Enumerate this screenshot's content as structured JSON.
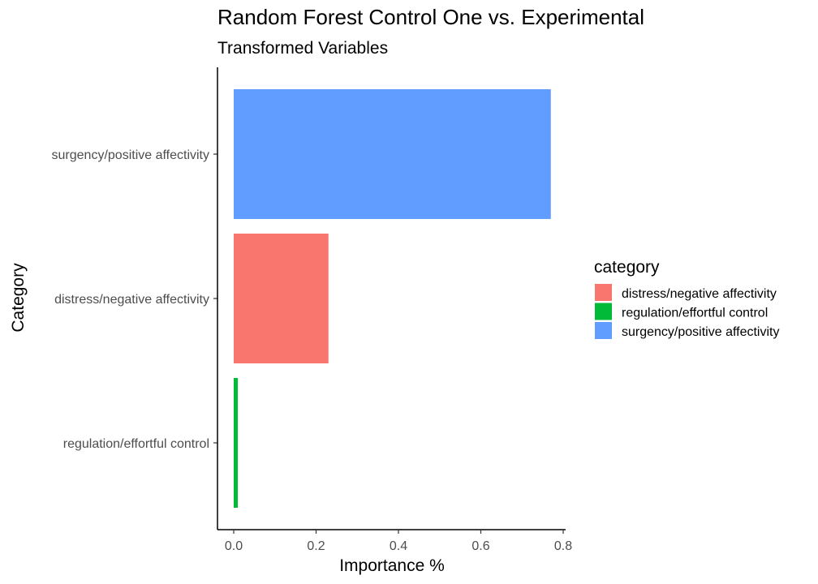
{
  "chart_data": {
    "type": "bar",
    "orientation": "horizontal",
    "title": "Random Forest Control One vs. Experimental",
    "subtitle": "Transformed Variables",
    "xlabel": "Importance %",
    "ylabel": "Category",
    "xlim": [
      0,
      0.8
    ],
    "x_ticks": [
      0.0,
      0.2,
      0.4,
      0.6,
      0.8
    ],
    "x_tick_labels": [
      "0.0",
      "0.2",
      "0.4",
      "0.6",
      "0.8"
    ],
    "categories": [
      "surgency/positive affectivity",
      "distress/negative affectivity",
      "regulation/effortful control"
    ],
    "values": [
      0.77,
      0.23,
      0.01
    ],
    "colors": [
      "#619CFF",
      "#F8766D",
      "#00BA38"
    ],
    "grid": false,
    "legend": {
      "title": "category",
      "position": "right",
      "items": [
        {
          "label": "distress/negative affectivity",
          "color": "#F8766D"
        },
        {
          "label": "regulation/effortful control",
          "color": "#00BA38"
        },
        {
          "label": "surgency/positive affectivity",
          "color": "#619CFF"
        }
      ]
    }
  }
}
